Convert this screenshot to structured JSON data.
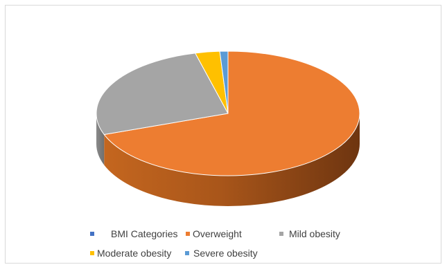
{
  "chart_data": {
    "type": "pie",
    "title": "",
    "style": "3d",
    "legend_position": "bottom",
    "categories": [
      "Overweight",
      "Mild obesity",
      "Moderate obesity",
      "Severe obesity"
    ],
    "values": [
      69.5,
      26.5,
      3.0,
      1.0
    ],
    "unit": "percent",
    "colors": [
      "#ed7d31",
      "#a5a5a5",
      "#ffc000",
      "#5b9bd5"
    ],
    "legend": [
      {
        "label": "BMI Categories",
        "color": "#4472c4"
      },
      {
        "label": "Overweight",
        "color": "#ed7d31"
      },
      {
        "label": "Mild obesity",
        "color": "#a5a5a5"
      },
      {
        "label": "Moderate obesity",
        "color": "#ffc000"
      },
      {
        "label": "Severe obesity",
        "color": "#5b9bd5"
      }
    ]
  }
}
